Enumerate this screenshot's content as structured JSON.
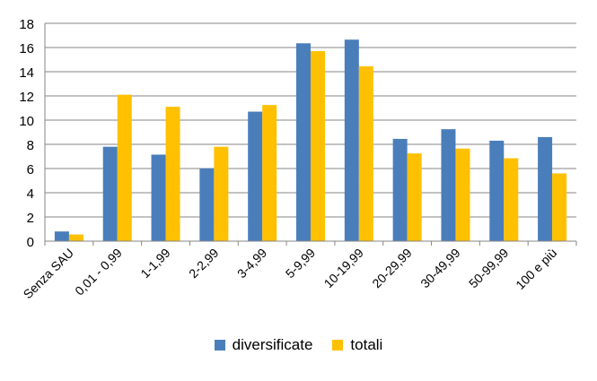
{
  "chart_data": {
    "type": "bar",
    "categories": [
      "Senza SAU",
      "0,01 - 0,99",
      "1-1,99",
      "2-2,99",
      "3-4,99",
      "5-9,99",
      "10-19,99",
      "20-29,99",
      "30-49,99",
      "50-99,99",
      "100 e più"
    ],
    "series": [
      {
        "name": "diversificate",
        "color": "#4a7ebb",
        "values": [
          0.8,
          7.8,
          7.15,
          6.0,
          10.7,
          16.35,
          16.65,
          8.45,
          9.25,
          8.3,
          8.6
        ]
      },
      {
        "name": "totali",
        "color": "#ffc000",
        "values": [
          0.55,
          12.1,
          11.1,
          7.8,
          11.25,
          15.7,
          14.45,
          7.25,
          7.65,
          6.85,
          5.6
        ]
      }
    ],
    "ylim": [
      0,
      18
    ],
    "yticks": [
      0,
      2,
      4,
      6,
      8,
      10,
      12,
      14,
      16,
      18
    ],
    "grid": true,
    "legend_position": "bottom",
    "title": "",
    "xlabel": "",
    "ylabel": ""
  }
}
